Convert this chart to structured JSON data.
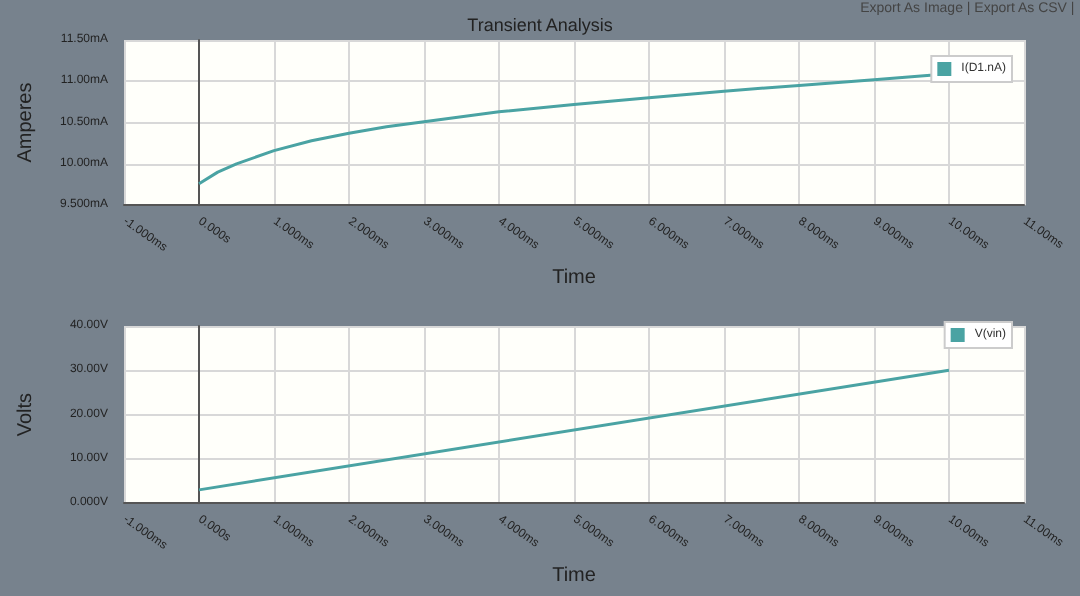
{
  "chart_data": [
    {
      "type": "line",
      "title": "Transient Analysis",
      "xlabel": "Time",
      "ylabel": "Amperes",
      "annotations": [
        "Export As Image | Export As CSV |"
      ],
      "x": [
        0,
        0.25,
        0.5,
        1,
        1.5,
        2,
        2.5,
        3,
        4,
        5,
        6,
        7,
        8,
        9,
        10
      ],
      "series": [
        {
          "name": "I(D1.nA)",
          "color": "#4aa3a3",
          "values": [
            9.76,
            9.9,
            10.0,
            10.16,
            10.28,
            10.37,
            10.45,
            10.51,
            10.63,
            10.72,
            10.8,
            10.88,
            10.95,
            11.02,
            11.09
          ]
        }
      ],
      "xlim": [
        -1,
        11
      ],
      "xticks": [
        {
          "value": -1,
          "label": "-1.000ms"
        },
        {
          "value": 0,
          "label": "0.000s"
        },
        {
          "value": 1,
          "label": "1.000ms"
        },
        {
          "value": 2,
          "label": "2.000ms"
        },
        {
          "value": 3,
          "label": "3.000ms"
        },
        {
          "value": 4,
          "label": "4.000ms"
        },
        {
          "value": 5,
          "label": "5.000ms"
        },
        {
          "value": 6,
          "label": "6.000ms"
        },
        {
          "value": 7,
          "label": "7.000ms"
        },
        {
          "value": 8,
          "label": "8.000ms"
        },
        {
          "value": 9,
          "label": "9.000ms"
        },
        {
          "value": 10,
          "label": "10.00ms"
        },
        {
          "value": 11,
          "label": "11.00ms"
        }
      ],
      "ylim": [
        9.5,
        11.5
      ],
      "yticks": [
        {
          "value": 9.5,
          "label": "9.500mA"
        },
        {
          "value": 10,
          "label": "10.00mA"
        },
        {
          "value": 10.5,
          "label": "10.50mA"
        },
        {
          "value": 11,
          "label": "11.00mA"
        },
        {
          "value": 11.5,
          "label": "11.50mA"
        }
      ],
      "grid": true,
      "legend": "top right",
      "marker": "none",
      "line_style": "solid"
    },
    {
      "type": "line",
      "xlabel": "Time",
      "ylabel": "Volts",
      "x": [
        0,
        10
      ],
      "series": [
        {
          "name": "V(vin)",
          "color": "#4aa3a3",
          "values": [
            3,
            30
          ]
        }
      ],
      "xlim": [
        -1,
        11
      ],
      "xticks": [
        {
          "value": -1,
          "label": "-1.000ms"
        },
        {
          "value": 0,
          "label": "0.000s"
        },
        {
          "value": 1,
          "label": "1.000ms"
        },
        {
          "value": 2,
          "label": "2.000ms"
        },
        {
          "value": 3,
          "label": "3.000ms"
        },
        {
          "value": 4,
          "label": "4.000ms"
        },
        {
          "value": 5,
          "label": "5.000ms"
        },
        {
          "value": 6,
          "label": "6.000ms"
        },
        {
          "value": 7,
          "label": "7.000ms"
        },
        {
          "value": 8,
          "label": "8.000ms"
        },
        {
          "value": 9,
          "label": "9.000ms"
        },
        {
          "value": 10,
          "label": "10.00ms"
        },
        {
          "value": 11,
          "label": "11.00ms"
        }
      ],
      "ylim": [
        0,
        40
      ],
      "yticks": [
        {
          "value": 0,
          "label": "0.000V"
        },
        {
          "value": 10,
          "label": "10.00V"
        },
        {
          "value": 20,
          "label": "20.00V"
        },
        {
          "value": 30,
          "label": "30.00V"
        },
        {
          "value": 40,
          "label": "40.00V"
        }
      ],
      "grid": true,
      "legend": "top right",
      "marker": "none",
      "line_style": "solid"
    }
  ]
}
